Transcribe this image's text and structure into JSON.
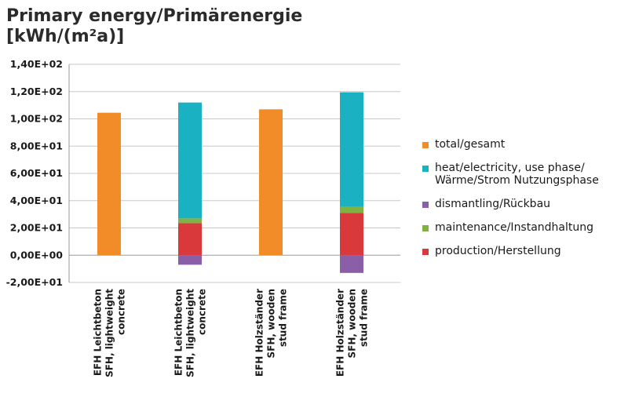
{
  "chart_data": {
    "type": "bar",
    "stacked": true,
    "title_line1": "Primary energy/Primärenergie",
    "title_line2": "[kWh/(m²a)]",
    "ylim": [
      -20,
      140
    ],
    "yticks": [
      -20,
      0,
      20,
      40,
      60,
      80,
      100,
      120,
      140
    ],
    "ytick_labels": [
      "-2,00E+01",
      "0,00E+00",
      "2,00E+01",
      "4,00E+01",
      "6,00E+01",
      "8,00E+01",
      "1,00E+02",
      "1,20E+02",
      "1,40E+02"
    ],
    "grid": "horizontal",
    "legend_position": "right",
    "categories": [
      [
        "EFH Leichtbeton",
        "SFH, lightweight",
        "concrete"
      ],
      [
        "EFH Leichtbeton",
        "SFH, lightweight",
        "concrete"
      ],
      [
        "EFH Holzständer",
        "SFH, wooden",
        "stud frame"
      ],
      [
        "EFH Holzständer",
        "SFH, wooden",
        "stud frame"
      ]
    ],
    "series": [
      {
        "name": "total/gesamt",
        "color": "#f28c28",
        "values": [
          104.5,
          0,
          107,
          0
        ]
      },
      {
        "name": "heat/electricity, use phase/\nWärme/Strom Nutzungsphase",
        "color": "#1ab2c2",
        "values": [
          0,
          85,
          0,
          84
        ]
      },
      {
        "name": "dismantling/Rückbau",
        "color": "#8a5fa8",
        "values": [
          0,
          -7,
          0,
          -13
        ]
      },
      {
        "name": "maintenance/Instandhaltung",
        "color": "#7fb143",
        "values": [
          0,
          3.5,
          0,
          4.5
        ]
      },
      {
        "name": "production/Herstellung",
        "color": "#d9393b",
        "values": [
          0,
          23.5,
          0,
          31
        ]
      }
    ],
    "stack_order": [
      "production/Herstellung",
      "maintenance/Instandhaltung",
      "heat/electricity, use phase/\nWärme/Strom Nutzungsphase"
    ]
  }
}
